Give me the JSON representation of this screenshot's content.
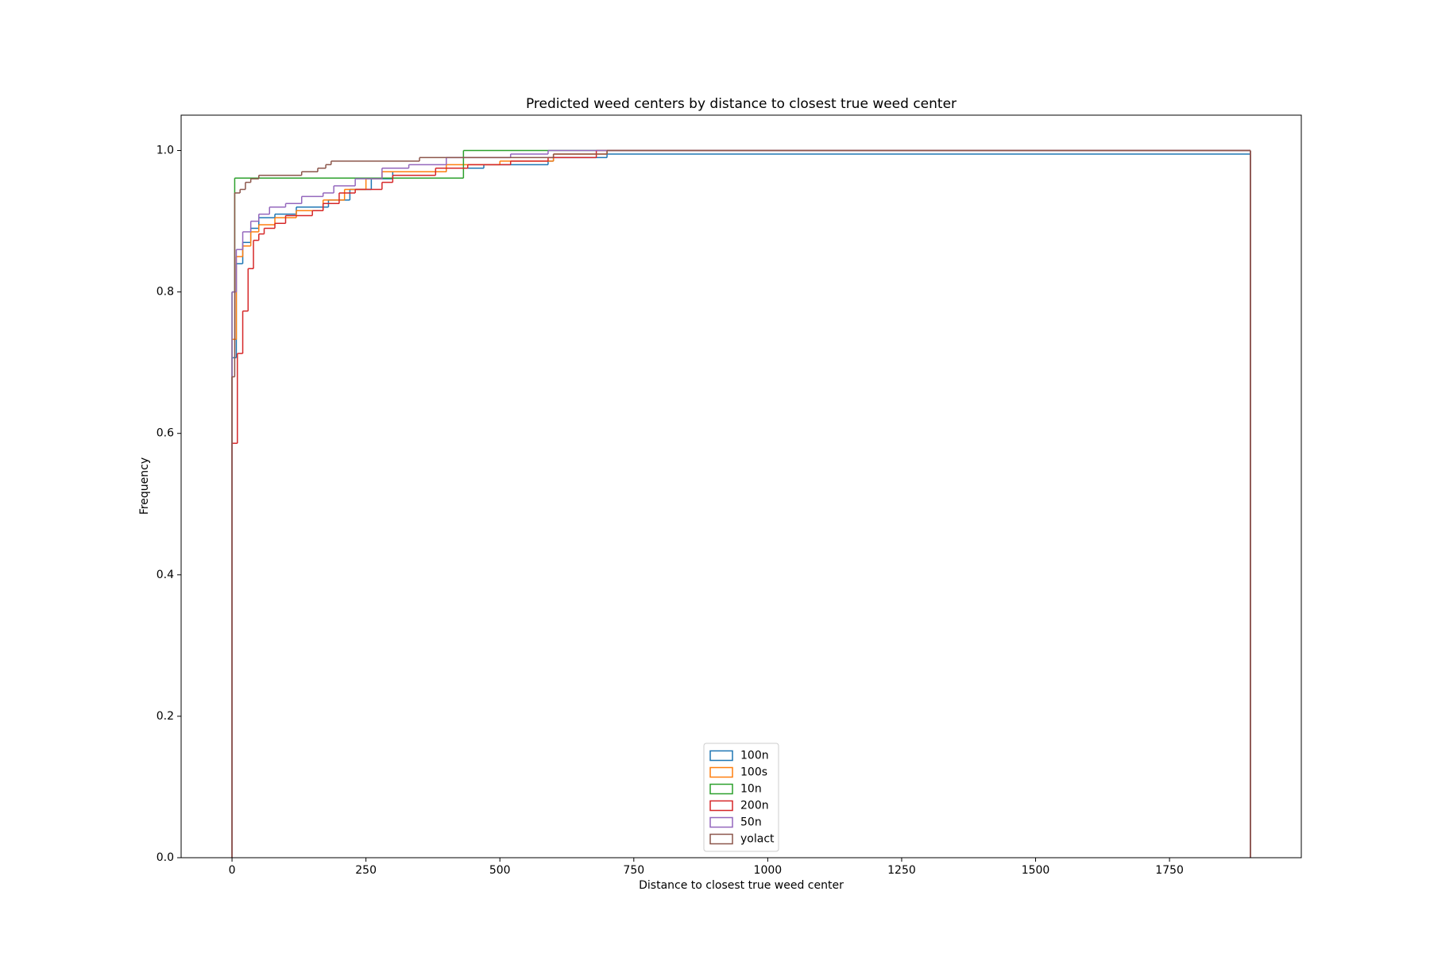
{
  "chart_data": {
    "type": "histogram",
    "cumulative": true,
    "title": "Predicted weed centers by distance to closest true weed center",
    "xlabel": "Distance to closest true weed center",
    "ylabel": "Frequency",
    "xlim": [
      -95,
      1996
    ],
    "ylim": [
      0,
      1.05
    ],
    "xticks": [
      0,
      250,
      500,
      750,
      1000,
      1250,
      1500,
      1750
    ],
    "yticks": [
      {
        "value": 0,
        "label": "0.0"
      },
      0.2,
      0.4,
      0.6,
      0.8,
      {
        "value": 1,
        "label": "1.0"
      }
    ],
    "legend": "lower center",
    "series": [
      {
        "name": "100n",
        "color": "#1f77b4",
        "bins": [
          0,
          8,
          20,
          35,
          50,
          80,
          120,
          180,
          220,
          260,
          300,
          400,
          470,
          590,
          600,
          700,
          1901
        ],
        "values": [
          0.707,
          0.84,
          0.87,
          0.89,
          0.905,
          0.91,
          0.92,
          0.93,
          0.945,
          0.96,
          0.97,
          0.975,
          0.98,
          0.985,
          0.99,
          0.995
        ]
      },
      {
        "name": "100s",
        "color": "#ff7f0e",
        "bins": [
          0,
          8,
          20,
          35,
          50,
          80,
          120,
          170,
          210,
          250,
          280,
          400,
          500,
          600,
          700,
          1901
        ],
        "values": [
          0.733,
          0.85,
          0.865,
          0.885,
          0.895,
          0.905,
          0.915,
          0.93,
          0.945,
          0.96,
          0.97,
          0.98,
          0.985,
          0.995,
          1.0
        ]
      },
      {
        "name": "10n",
        "color": "#2ca02c",
        "bins": [
          0,
          5,
          432,
          1901
        ],
        "values": [
          0.8,
          0.961,
          1.0
        ]
      },
      {
        "name": "200n",
        "color": "#d62728",
        "bins": [
          0,
          10,
          20,
          30,
          40,
          50,
          60,
          80,
          100,
          150,
          170,
          200,
          230,
          280,
          300,
          380,
          440,
          520,
          590,
          680,
          1901
        ],
        "values": [
          0.586,
          0.713,
          0.773,
          0.833,
          0.873,
          0.882,
          0.89,
          0.897,
          0.908,
          0.915,
          0.925,
          0.94,
          0.945,
          0.955,
          0.965,
          0.975,
          0.98,
          0.985,
          0.99,
          1.0
        ]
      },
      {
        "name": "50n",
        "color": "#9467bd",
        "bins": [
          0,
          8,
          20,
          35,
          50,
          70,
          100,
          130,
          170,
          190,
          230,
          280,
          330,
          400,
          520,
          590,
          1901
        ],
        "values": [
          0.8,
          0.86,
          0.885,
          0.9,
          0.91,
          0.92,
          0.925,
          0.935,
          0.94,
          0.95,
          0.96,
          0.975,
          0.98,
          0.99,
          0.995,
          1.0
        ]
      },
      {
        "name": "yolact",
        "color": "#8c564b",
        "bins": [
          0,
          5,
          15,
          25,
          35,
          50,
          130,
          160,
          175,
          185,
          350,
          600,
          700,
          1901
        ],
        "values": [
          0.68,
          0.94,
          0.945,
          0.955,
          0.96,
          0.965,
          0.97,
          0.975,
          0.98,
          0.985,
          0.99,
          0.995,
          1.0
        ]
      }
    ]
  }
}
